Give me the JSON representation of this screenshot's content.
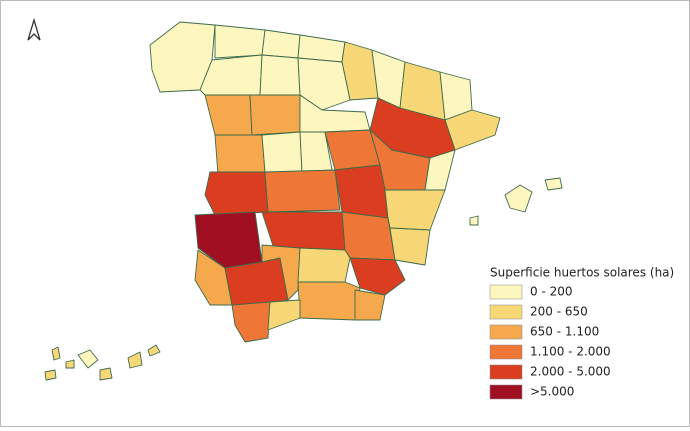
{
  "legend": {
    "title": "Superficie huertos solares (ha)",
    "items": [
      {
        "label": "0 - 200",
        "color": "#fdf6bf"
      },
      {
        "label": "200 - 650",
        "color": "#f8d777"
      },
      {
        "label": "650 - 1.100",
        "color": "#f5a84c"
      },
      {
        "label": "1.100 - 2.000",
        "color": "#ee7636"
      },
      {
        "label": "2.000 - 5.000",
        "color": "#db3d20"
      },
      {
        "label": ">5.000",
        "color": "#a10f22"
      }
    ]
  }
}
